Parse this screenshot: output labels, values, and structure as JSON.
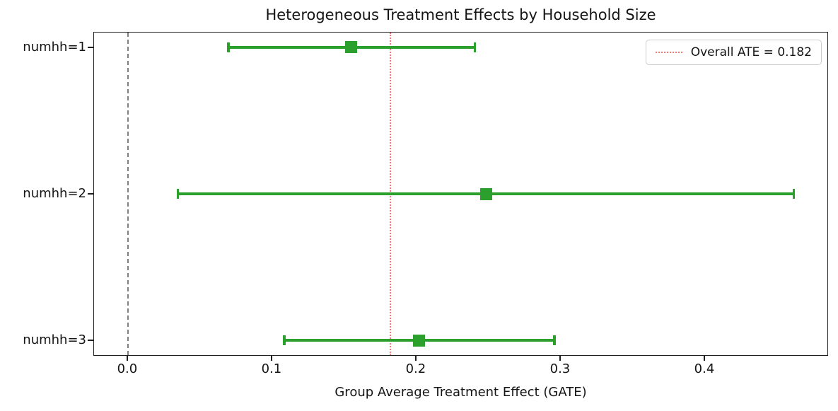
{
  "chart_data": {
    "type": "errorbar",
    "orientation": "horizontal",
    "title": "Heterogeneous Treatment Effects by Household Size",
    "xlabel": "Group Average Treatment Effect (GATE)",
    "ylabel": "",
    "categories": [
      "numhh=1",
      "numhh=2",
      "numhh=3"
    ],
    "series": [
      {
        "name": "GATE estimates",
        "estimates": [
          0.155,
          0.249,
          0.202
        ],
        "ci_low": [
          0.07,
          0.035,
          0.109
        ],
        "ci_high": [
          0.241,
          0.462,
          0.296
        ]
      }
    ],
    "reference_lines": [
      {
        "name": "zero-line",
        "x": 0.0,
        "style": "dashed",
        "color": "#808080"
      },
      {
        "name": "overall-ate-line",
        "x": 0.182,
        "style": "dotted",
        "color": "rgba(255,0,0,0.55)"
      }
    ],
    "overall_ate": 0.182,
    "legend": {
      "entries": [
        {
          "label": "Overall ATE = 0.182",
          "style": "dotted",
          "color": "rgba(255,0,0,0.55)"
        }
      ],
      "position": "upper right"
    },
    "x_ticks": [
      0.0,
      0.1,
      0.2,
      0.3,
      0.4
    ],
    "x_tick_labels": [
      "0.0",
      "0.1",
      "0.2",
      "0.3",
      "0.4"
    ],
    "xlim": [
      -0.023,
      0.4853
    ],
    "grid": false,
    "colors": {
      "marker": "#2ca02c",
      "error_bar": "#2ca02c",
      "ate_line": "rgba(255,0,0,0.55)",
      "zero_line": "#808080",
      "axis": "#1f1f1f",
      "background": "#ffffff"
    },
    "marker_shape": "square"
  }
}
